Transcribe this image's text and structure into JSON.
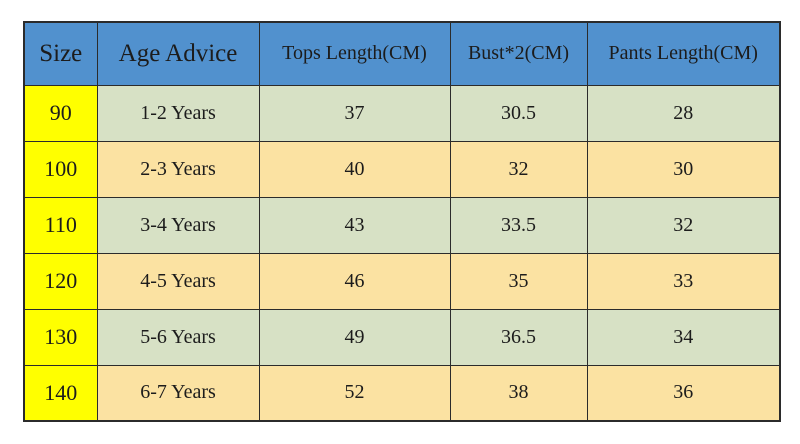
{
  "chart_data": {
    "type": "table",
    "title": "",
    "columns": [
      "Size",
      "Age Advice",
      "Tops Length(CM)",
      "Bust*2(CM)",
      "Pants Length(CM)"
    ],
    "rows": [
      [
        "90",
        "1-2 Years",
        "37",
        "30.5",
        "28"
      ],
      [
        "100",
        "2-3 Years",
        "40",
        "32",
        "30"
      ],
      [
        "110",
        "3-4 Years",
        "43",
        "33.5",
        "32"
      ],
      [
        "120",
        "4-5 Years",
        "46",
        "35",
        "33"
      ],
      [
        "130",
        "5-6 Years",
        "49",
        "36.5",
        "34"
      ],
      [
        "140",
        "6-7 Years",
        "52",
        "38",
        "36"
      ]
    ]
  },
  "colors": {
    "header_bg": "#5191CE",
    "size_col_bg": "#FFFF00",
    "row_green_bg": "#D7E1C5",
    "row_tan_bg": "#FBE2A2",
    "border_color": "#2B2B2B",
    "text_color": "#1C1C1C",
    "page_bg": "#FFFFFF"
  }
}
